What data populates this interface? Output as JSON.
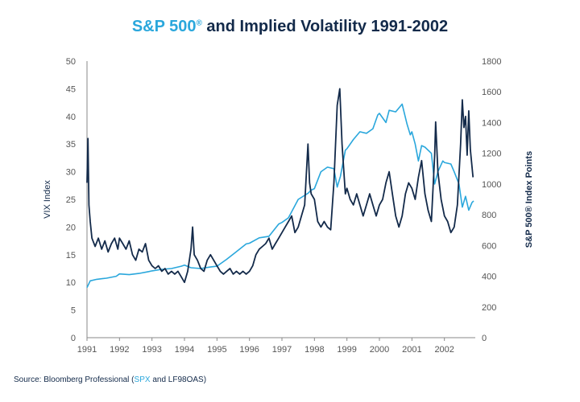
{
  "title": {
    "part1": "S&P 500",
    "reg": "®",
    "part2": " and Implied Volatility 1991-2002"
  },
  "source": {
    "prefix": "Source: Bloomberg Professional (",
    "spx": "SPX",
    "suffix": " and LF98OAS)"
  },
  "colors": {
    "vix": "#132a4a",
    "spx": "#2aa7dc",
    "axis": "#8a8a8a",
    "text": "#132a4a"
  },
  "chart_data": {
    "type": "line",
    "title": "S&P 500® and Implied Volatility 1991-2002",
    "xlabel": "",
    "ylabel_left": "VIX Index",
    "ylabel_right": "S&P 500® Index Points",
    "x_ticks": [
      "1991",
      "1992",
      "1993",
      "1994",
      "1995",
      "1996",
      "1997",
      "1998",
      "1999",
      "2000",
      "2001",
      "2002"
    ],
    "ylim_left": [
      0,
      50
    ],
    "yticks_left": [
      0,
      5,
      10,
      15,
      20,
      25,
      30,
      35,
      40,
      45,
      50
    ],
    "ylim_right": [
      0,
      1800
    ],
    "yticks_right": [
      0,
      200,
      400,
      600,
      800,
      1000,
      1200,
      1400,
      1600,
      1800
    ],
    "xlim": [
      1991.0,
      2002.95
    ],
    "series": [
      {
        "name": "VIX",
        "axis": "left",
        "color": "#132a4a",
        "points": [
          [
            1991.0,
            28
          ],
          [
            1991.03,
            36
          ],
          [
            1991.06,
            24
          ],
          [
            1991.1,
            21
          ],
          [
            1991.15,
            18
          ],
          [
            1991.25,
            16.5
          ],
          [
            1991.35,
            18
          ],
          [
            1991.45,
            16
          ],
          [
            1991.55,
            17.5
          ],
          [
            1991.65,
            15.5
          ],
          [
            1991.75,
            17
          ],
          [
            1991.85,
            18
          ],
          [
            1991.95,
            16
          ],
          [
            1992.0,
            18
          ],
          [
            1992.1,
            17
          ],
          [
            1992.2,
            16
          ],
          [
            1992.3,
            17.5
          ],
          [
            1992.4,
            15
          ],
          [
            1992.5,
            14
          ],
          [
            1992.6,
            16
          ],
          [
            1992.7,
            15.5
          ],
          [
            1992.8,
            17
          ],
          [
            1992.9,
            14
          ],
          [
            1993.0,
            13
          ],
          [
            1993.1,
            12.5
          ],
          [
            1993.2,
            13
          ],
          [
            1993.3,
            12
          ],
          [
            1993.4,
            12.5
          ],
          [
            1993.5,
            11.5
          ],
          [
            1993.6,
            12
          ],
          [
            1993.7,
            11.5
          ],
          [
            1993.8,
            12
          ],
          [
            1993.9,
            11
          ],
          [
            1994.0,
            10
          ],
          [
            1994.1,
            12
          ],
          [
            1994.2,
            16
          ],
          [
            1994.25,
            20
          ],
          [
            1994.3,
            15
          ],
          [
            1994.4,
            14
          ],
          [
            1994.5,
            12.5
          ],
          [
            1994.6,
            12
          ],
          [
            1994.7,
            14
          ],
          [
            1994.8,
            15
          ],
          [
            1994.9,
            14
          ],
          [
            1995.0,
            13
          ],
          [
            1995.1,
            12
          ],
          [
            1995.2,
            11.5
          ],
          [
            1995.3,
            12
          ],
          [
            1995.4,
            12.5
          ],
          [
            1995.5,
            11.5
          ],
          [
            1995.6,
            12
          ],
          [
            1995.7,
            11.5
          ],
          [
            1995.8,
            12
          ],
          [
            1995.9,
            11.5
          ],
          [
            1996.0,
            12
          ],
          [
            1996.1,
            13
          ],
          [
            1996.2,
            15
          ],
          [
            1996.3,
            16
          ],
          [
            1996.4,
            16.5
          ],
          [
            1996.5,
            17
          ],
          [
            1996.6,
            18
          ],
          [
            1996.7,
            16
          ],
          [
            1996.8,
            17
          ],
          [
            1996.9,
            18
          ],
          [
            1997.0,
            19
          ],
          [
            1997.1,
            20
          ],
          [
            1997.2,
            21
          ],
          [
            1997.3,
            22
          ],
          [
            1997.4,
            19
          ],
          [
            1997.5,
            20
          ],
          [
            1997.6,
            22
          ],
          [
            1997.7,
            24
          ],
          [
            1997.8,
            35
          ],
          [
            1997.85,
            28
          ],
          [
            1997.9,
            26
          ],
          [
            1998.0,
            25
          ],
          [
            1998.1,
            21
          ],
          [
            1998.2,
            20
          ],
          [
            1998.3,
            21
          ],
          [
            1998.4,
            20
          ],
          [
            1998.5,
            19.5
          ],
          [
            1998.6,
            28
          ],
          [
            1998.7,
            42
          ],
          [
            1998.78,
            45
          ],
          [
            1998.85,
            35
          ],
          [
            1998.95,
            26
          ],
          [
            1999.0,
            27
          ],
          [
            1999.1,
            25
          ],
          [
            1999.2,
            24
          ],
          [
            1999.3,
            26
          ],
          [
            1999.4,
            24
          ],
          [
            1999.5,
            22
          ],
          [
            1999.6,
            24
          ],
          [
            1999.7,
            26
          ],
          [
            1999.8,
            24
          ],
          [
            1999.9,
            22
          ],
          [
            2000.0,
            24
          ],
          [
            2000.1,
            25
          ],
          [
            2000.2,
            28
          ],
          [
            2000.3,
            30
          ],
          [
            2000.4,
            26
          ],
          [
            2000.5,
            22
          ],
          [
            2000.6,
            20
          ],
          [
            2000.7,
            22
          ],
          [
            2000.8,
            26
          ],
          [
            2000.9,
            28
          ],
          [
            2001.0,
            27
          ],
          [
            2001.1,
            25
          ],
          [
            2001.2,
            29
          ],
          [
            2001.3,
            32
          ],
          [
            2001.4,
            26
          ],
          [
            2001.5,
            23
          ],
          [
            2001.6,
            21
          ],
          [
            2001.7,
            33
          ],
          [
            2001.73,
            39
          ],
          [
            2001.8,
            30
          ],
          [
            2001.9,
            25
          ],
          [
            2002.0,
            22
          ],
          [
            2002.1,
            21
          ],
          [
            2002.2,
            19
          ],
          [
            2002.3,
            20
          ],
          [
            2002.4,
            24
          ],
          [
            2002.5,
            35
          ],
          [
            2002.55,
            43
          ],
          [
            2002.6,
            38
          ],
          [
            2002.65,
            40
          ],
          [
            2002.7,
            33
          ],
          [
            2002.75,
            41
          ],
          [
            2002.8,
            34
          ],
          [
            2002.88,
            29
          ]
        ]
      },
      {
        "name": "S&P 500 (SPX)",
        "axis": "right",
        "color": "#2aa7dc",
        "points": [
          [
            1991.0,
            326
          ],
          [
            1991.1,
            370
          ],
          [
            1991.3,
            380
          ],
          [
            1991.6,
            387
          ],
          [
            1991.9,
            400
          ],
          [
            1992.0,
            415
          ],
          [
            1992.3,
            410
          ],
          [
            1992.6,
            418
          ],
          [
            1992.9,
            430
          ],
          [
            1993.0,
            435
          ],
          [
            1993.3,
            445
          ],
          [
            1993.6,
            450
          ],
          [
            1993.9,
            465
          ],
          [
            1994.0,
            472
          ],
          [
            1994.2,
            455
          ],
          [
            1994.5,
            450
          ],
          [
            1994.8,
            460
          ],
          [
            1995.0,
            465
          ],
          [
            1995.3,
            510
          ],
          [
            1995.6,
            560
          ],
          [
            1995.9,
            610
          ],
          [
            1996.0,
            615
          ],
          [
            1996.3,
            650
          ],
          [
            1996.6,
            660
          ],
          [
            1996.9,
            740
          ],
          [
            1997.0,
            750
          ],
          [
            1997.2,
            780
          ],
          [
            1997.5,
            900
          ],
          [
            1997.8,
            940
          ],
          [
            1997.9,
            960
          ],
          [
            1998.0,
            970
          ],
          [
            1998.2,
            1080
          ],
          [
            1998.4,
            1110
          ],
          [
            1998.6,
            1100
          ],
          [
            1998.7,
            980
          ],
          [
            1998.8,
            1050
          ],
          [
            1998.95,
            1220
          ],
          [
            1999.0,
            1230
          ],
          [
            1999.2,
            1290
          ],
          [
            1999.4,
            1340
          ],
          [
            1999.6,
            1330
          ],
          [
            1999.8,
            1360
          ],
          [
            1999.95,
            1450
          ],
          [
            2000.0,
            1460
          ],
          [
            2000.2,
            1400
          ],
          [
            2000.3,
            1480
          ],
          [
            2000.5,
            1470
          ],
          [
            2000.7,
            1520
          ],
          [
            2000.85,
            1390
          ],
          [
            2000.95,
            1320
          ],
          [
            2001.0,
            1340
          ],
          [
            2001.1,
            1260
          ],
          [
            2001.2,
            1150
          ],
          [
            2001.3,
            1250
          ],
          [
            2001.4,
            1240
          ],
          [
            2001.6,
            1200
          ],
          [
            2001.7,
            1000
          ],
          [
            2001.8,
            1080
          ],
          [
            2001.95,
            1150
          ],
          [
            2002.0,
            1140
          ],
          [
            2002.2,
            1130
          ],
          [
            2002.3,
            1080
          ],
          [
            2002.45,
            1000
          ],
          [
            2002.55,
            850
          ],
          [
            2002.65,
            920
          ],
          [
            2002.75,
            830
          ],
          [
            2002.85,
            880
          ],
          [
            2002.9,
            890
          ]
        ]
      }
    ]
  }
}
